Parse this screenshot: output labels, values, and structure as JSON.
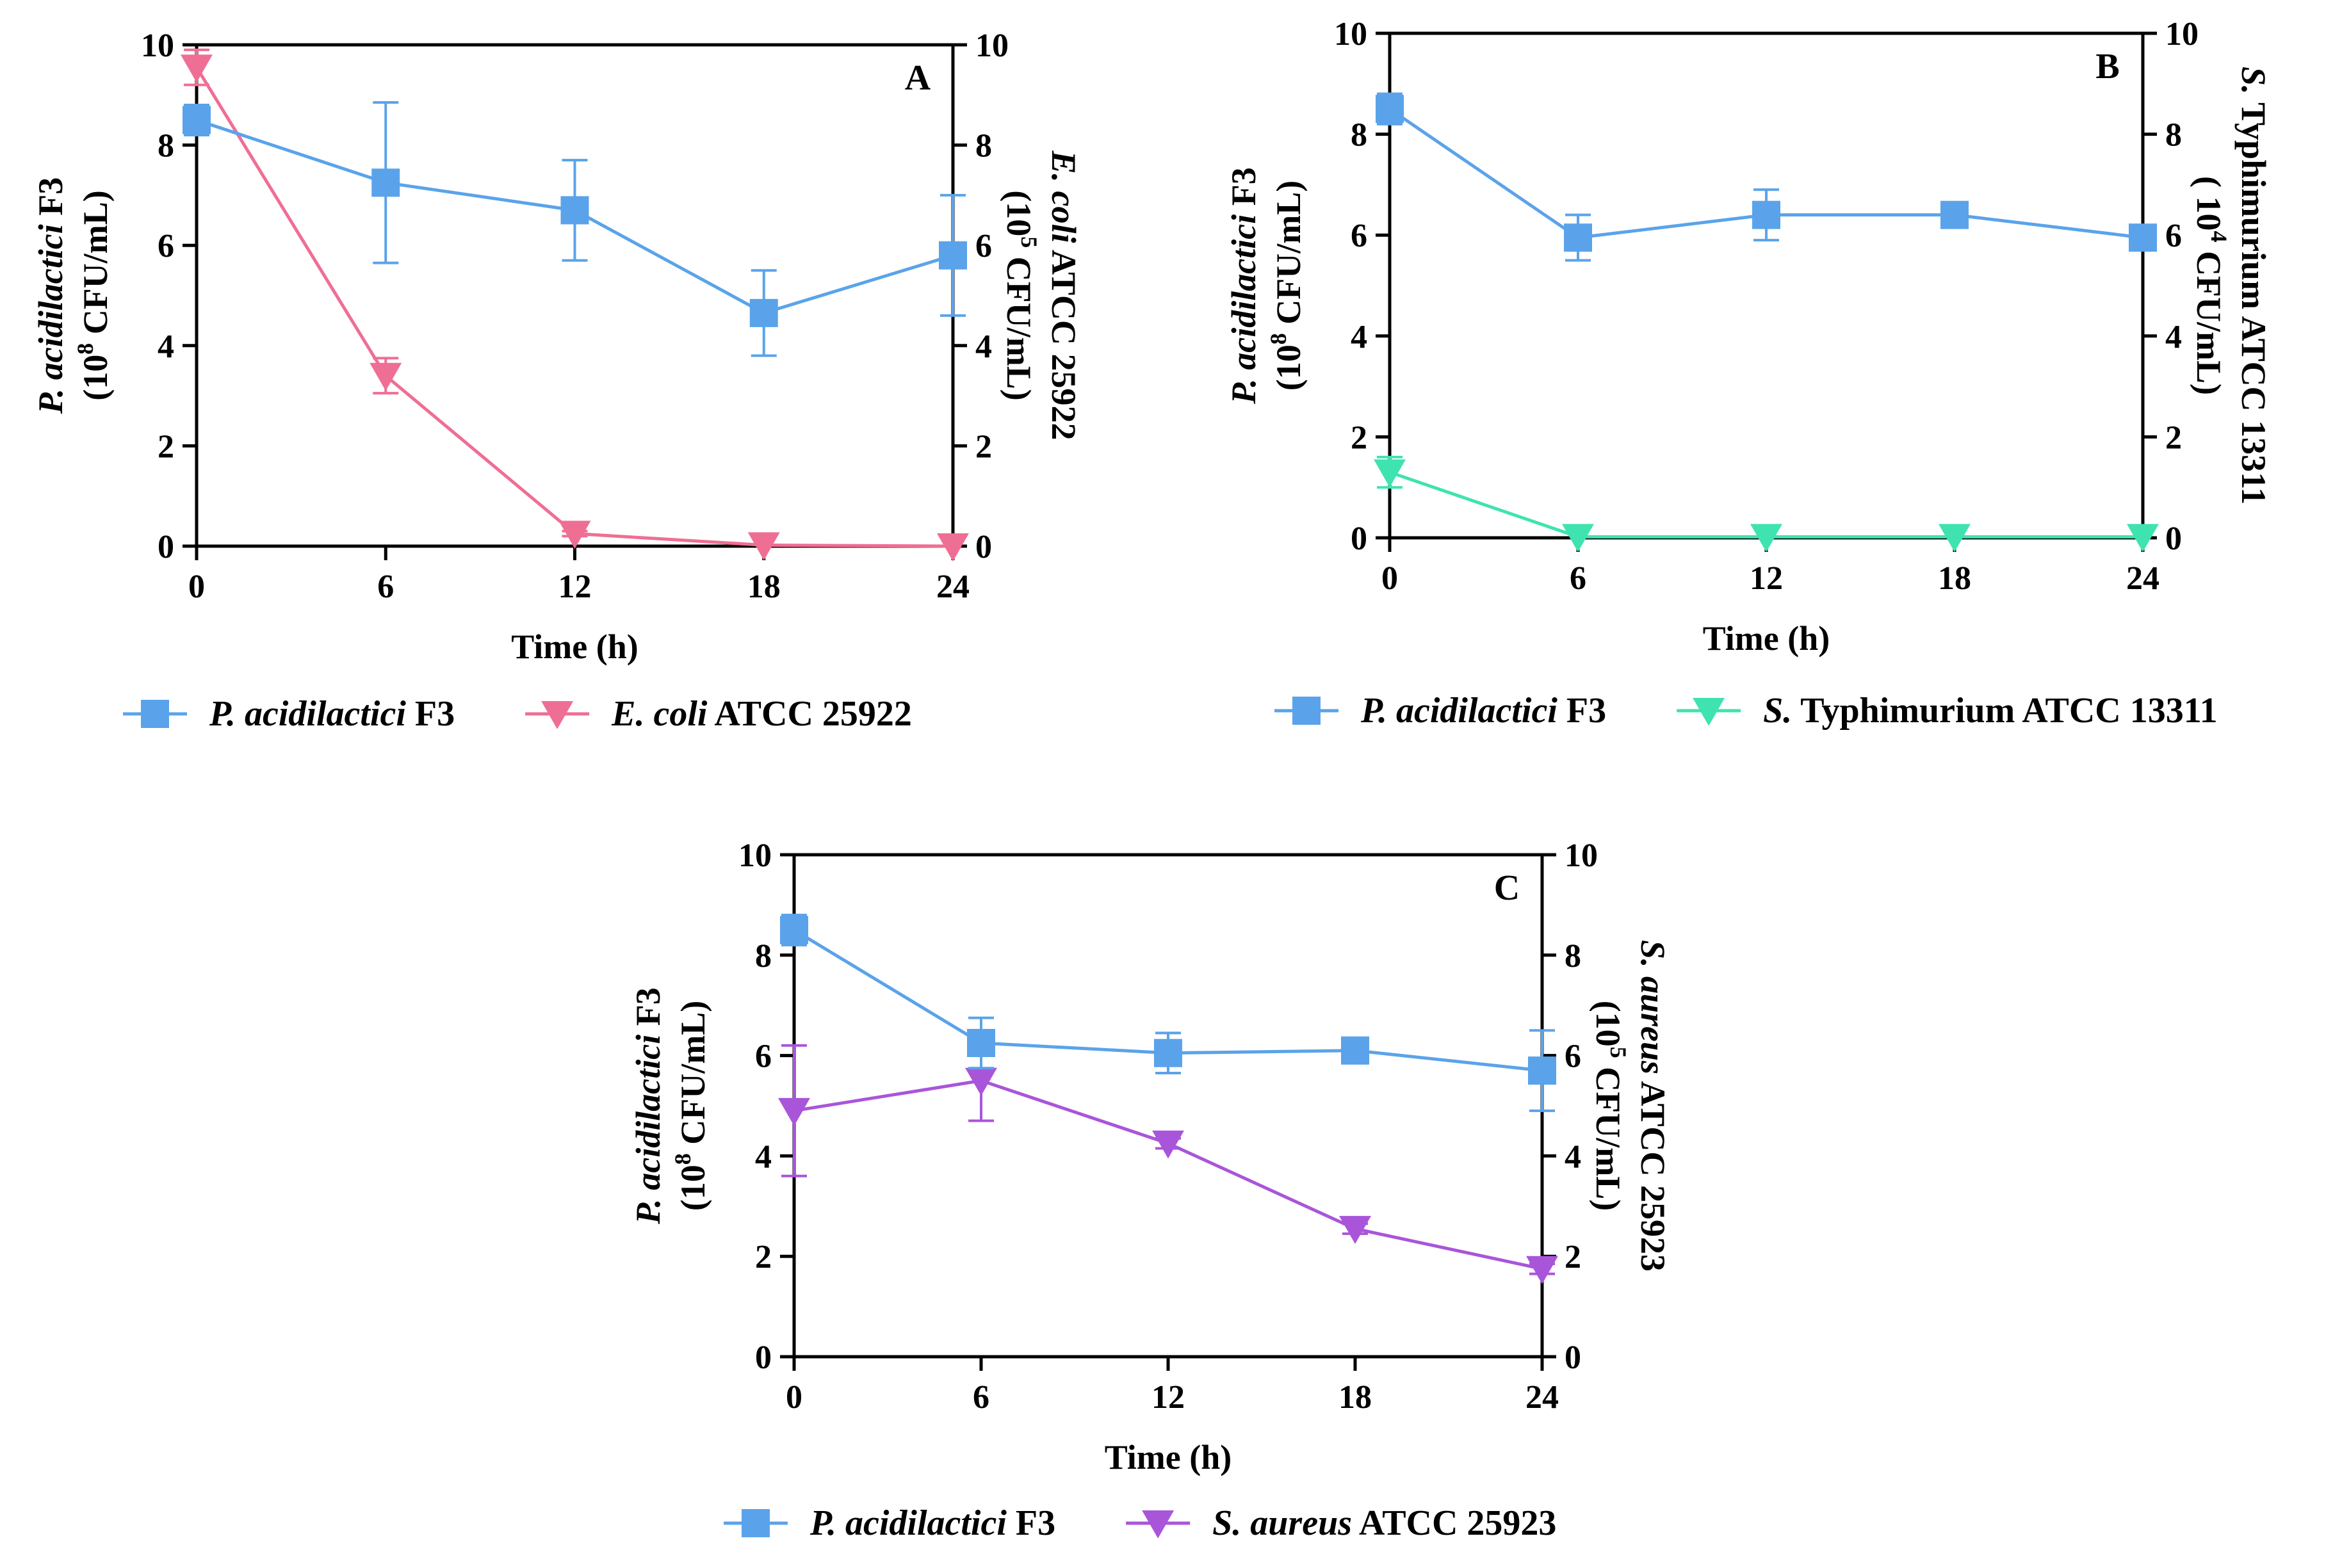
{
  "chart_data": [
    {
      "type": "line",
      "panel_label": "A",
      "xlabel": "Time (h)",
      "x": [
        0,
        6,
        12,
        18,
        24
      ],
      "xticks": [
        "0",
        "6",
        "12",
        "18",
        "24"
      ],
      "xlim": [
        0,
        24
      ],
      "ylim": [
        0,
        10
      ],
      "yticks": [
        "0",
        "2",
        "4",
        "6",
        "8",
        "10"
      ],
      "y2lim": [
        0,
        10
      ],
      "y2ticks": [
        "0",
        "2",
        "4",
        "6",
        "8",
        "10"
      ],
      "ylabel": {
        "italic": "P. acidilactici",
        "normal": " F3",
        "line2_pre": "(10",
        "line2_sup": "8",
        "line2_post": " CFU/mL)"
      },
      "y2label": {
        "italic": "E. coli",
        "normal": " ATCC 25922",
        "line2_pre": "(10",
        "line2_sup": "5",
        "line2_post": " CFU/mL)"
      },
      "legend_position": "bottom",
      "series": [
        {
          "name_italic": "P. acidilactici",
          "name_normal": " F3",
          "color": "#5aa3ea",
          "marker": "square",
          "axis": "left",
          "values": [
            8.5,
            7.25,
            6.7,
            4.65,
            5.8
          ],
          "errors": [
            0.3,
            1.6,
            1.0,
            0.85,
            1.2
          ]
        },
        {
          "name_italic": "E. coli",
          "name_normal": " ATCC 25922",
          "color": "#ef6e94",
          "marker": "triangle-down",
          "axis": "right",
          "values": [
            9.55,
            3.4,
            0.25,
            0.02,
            0.0
          ],
          "errors": [
            0.35,
            0.35,
            0.05,
            0.0,
            0.0
          ]
        }
      ]
    },
    {
      "type": "line",
      "panel_label": "B",
      "xlabel": "Time (h)",
      "x": [
        0,
        6,
        12,
        18,
        24
      ],
      "xticks": [
        "0",
        "6",
        "12",
        "18",
        "24"
      ],
      "xlim": [
        0,
        24
      ],
      "ylim": [
        0,
        10
      ],
      "yticks": [
        "0",
        "2",
        "4",
        "6",
        "8",
        "10"
      ],
      "y2lim": [
        0,
        10
      ],
      "y2ticks": [
        "0",
        "2",
        "4",
        "6",
        "8",
        "10"
      ],
      "ylabel": {
        "italic": "P. acidilactici",
        "normal": " F3",
        "line2_pre": "(10",
        "line2_sup": "8",
        "line2_post": " CFU/mL)"
      },
      "y2label": {
        "italic": "S.",
        "normal": " Typhimurium ATCC 13311",
        "line2_pre": "( 10",
        "line2_sup": "4",
        "line2_post": " CFU/mL)"
      },
      "legend_position": "bottom",
      "series": [
        {
          "name_italic": "P. acidilactici",
          "name_normal": " F3",
          "color": "#5aa3ea",
          "marker": "square",
          "axis": "left",
          "values": [
            8.5,
            5.95,
            6.4,
            6.4,
            5.95
          ],
          "errors": [
            0.3,
            0.45,
            0.5,
            0.1,
            0.1
          ]
        },
        {
          "name_italic": "S.",
          "name_normal": " Typhimurium ATCC 13311",
          "color": "#3fe3b0",
          "marker": "triangle-down",
          "axis": "right",
          "values": [
            1.3,
            0.02,
            0.02,
            0.02,
            0.02
          ],
          "errors": [
            0.3,
            0.0,
            0.0,
            0.0,
            0.0
          ]
        }
      ]
    },
    {
      "type": "line",
      "panel_label": "C",
      "xlabel": "Time (h)",
      "x": [
        0,
        6,
        12,
        18,
        24
      ],
      "xticks": [
        "0",
        "6",
        "12",
        "18",
        "24"
      ],
      "xlim": [
        0,
        24
      ],
      "ylim": [
        0,
        10
      ],
      "yticks": [
        "0",
        "2",
        "4",
        "6",
        "8",
        "10"
      ],
      "y2lim": [
        0,
        10
      ],
      "y2ticks": [
        "0",
        "2",
        "4",
        "6",
        "8",
        "10"
      ],
      "ylabel": {
        "italic": "P. acidilactici",
        "normal": " F3",
        "line2_pre": "(10",
        "line2_sup": "8",
        "line2_post": " CFU/mL)"
      },
      "y2label": {
        "italic": "S. aureus",
        "normal": " ATCC 25923",
        "line2_pre": "(10",
        "line2_sup": "5",
        "line2_post": " CFU/mL)"
      },
      "legend_position": "bottom",
      "series": [
        {
          "name_italic": "P. acidilactici",
          "name_normal": " F3",
          "color": "#5aa3ea",
          "marker": "square",
          "axis": "left",
          "values": [
            8.5,
            6.25,
            6.05,
            6.1,
            5.7
          ],
          "errors": [
            0.3,
            0.5,
            0.4,
            0.1,
            0.8
          ]
        },
        {
          "name_italic": "S. aureus",
          "name_normal": " ATCC 25923",
          "color": "#a955d9",
          "marker": "triangle-down",
          "axis": "right",
          "values": [
            4.9,
            5.5,
            4.25,
            2.55,
            1.75
          ],
          "errors": [
            1.3,
            0.8,
            0.1,
            0.1,
            0.1
          ]
        }
      ]
    }
  ]
}
